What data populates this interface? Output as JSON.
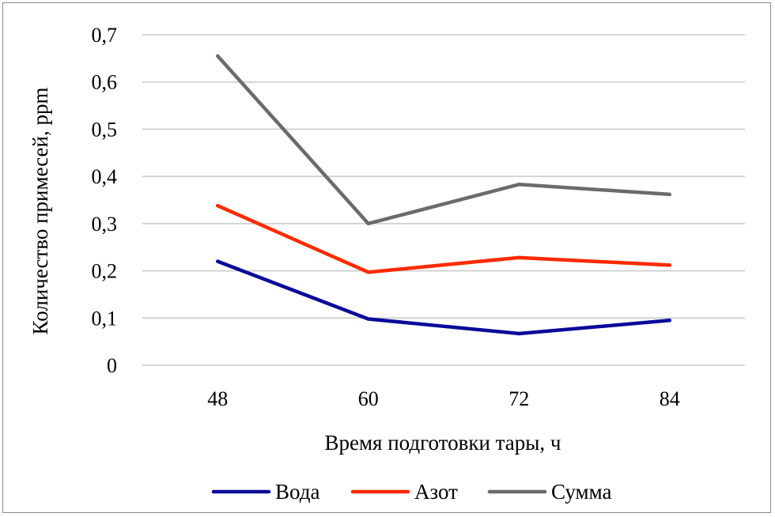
{
  "chart_data": {
    "type": "line",
    "title": "",
    "xlabel": "Время подготовки тары, ч",
    "ylabel": "Количество примесей, ppm",
    "categories": [
      "48",
      "60",
      "72",
      "84"
    ],
    "ylim": [
      0,
      0.7
    ],
    "yticks": [
      "0",
      "0,1",
      "0,2",
      "0,3",
      "0,4",
      "0,5",
      "0,6",
      "0,7"
    ],
    "grid": true,
    "legend_position": "bottom",
    "series": [
      {
        "name": "Вода",
        "color": "#0a0a9a",
        "values": [
          0.22,
          0.098,
          0.067,
          0.095
        ]
      },
      {
        "name": "Азот",
        "color": "#ff2a00",
        "values": [
          0.338,
          0.197,
          0.228,
          0.212
        ]
      },
      {
        "name": "Сумма",
        "color": "#6b6b6b",
        "values": [
          0.655,
          0.3,
          0.383,
          0.362
        ]
      }
    ]
  }
}
